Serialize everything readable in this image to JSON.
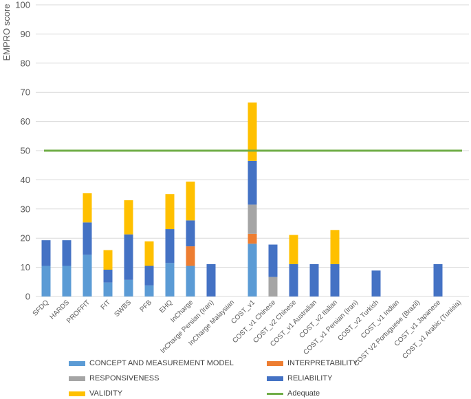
{
  "chart_data": {
    "type": "bar",
    "stacked": true,
    "title": "",
    "xlabel": "",
    "ylabel": "EMPRO score",
    "ylim": [
      0,
      100
    ],
    "yticks": [
      0,
      10,
      20,
      30,
      40,
      50,
      60,
      70,
      80,
      90,
      100
    ],
    "grid": true,
    "categories": [
      "SFDQ",
      "HARDS",
      "PROFFIT",
      "FIT",
      "SWBS",
      "PFB",
      "EHQ",
      "InCharge",
      "InCharge Persian (Iran)",
      "InCharge Malaysian",
      "COST_v1",
      "COST_v1 Chinese",
      "COST_v2 Chinese",
      "COST_v1 Australian",
      "COST_v2 Italian",
      "COST_v1 Persian (Iran)",
      "COST_v2 Turkish",
      "COST_v1 Indian",
      "COST V2 Portuguese (Brazil)",
      "COST_v1 Japanese",
      "COST_v1 Arabic (Tunisia)"
    ],
    "series": [
      {
        "name": "CONCEPT AND MEASUREMENT MODEL",
        "color": "#5B9BD5",
        "values": [
          10.5,
          10.5,
          14.3,
          4.8,
          5.7,
          3.8,
          11.5,
          10.5,
          0,
          0,
          18.1,
          0,
          0,
          0,
          0,
          0,
          0,
          0,
          0,
          0,
          0
        ]
      },
      {
        "name": "INTERPRETABILITY",
        "color": "#ED7D31",
        "values": [
          0,
          0,
          0,
          0,
          0,
          0,
          0,
          6.7,
          0,
          0,
          3.4,
          0,
          0,
          0,
          0,
          0,
          0,
          0,
          0,
          0,
          0
        ]
      },
      {
        "name": "RESPONSIVENESS",
        "color": "#A5A5A5",
        "values": [
          0,
          0,
          0,
          0,
          0,
          0,
          0,
          0,
          0,
          0,
          10.0,
          6.7,
          0,
          0,
          0,
          0,
          0,
          0,
          0,
          0,
          0
        ]
      },
      {
        "name": "RELIABILITY",
        "color": "#4472C4",
        "values": [
          8.8,
          8.8,
          11.1,
          4.4,
          15.6,
          6.7,
          11.6,
          8.9,
          11.1,
          0,
          15.0,
          11.1,
          11.1,
          11.1,
          11.1,
          0,
          8.9,
          0,
          0,
          11.1,
          0
        ]
      },
      {
        "name": "VALIDITY",
        "color": "#FFC000",
        "values": [
          0,
          0,
          10.0,
          6.7,
          11.7,
          8.4,
          12.0,
          13.3,
          0,
          0,
          20.0,
          0,
          10.0,
          0,
          11.7,
          0,
          0,
          0,
          0,
          0,
          0
        ]
      }
    ],
    "reference_line": {
      "name": "Adequate",
      "value": 50,
      "color": "#70AD47"
    },
    "legend": {
      "position": "bottom",
      "entries": [
        "CONCEPT AND MEASUREMENT MODEL",
        "INTERPRETABILITY",
        "RESPONSIVENESS",
        "RELIABILITY",
        "VALIDITY",
        "Adequate"
      ]
    }
  }
}
